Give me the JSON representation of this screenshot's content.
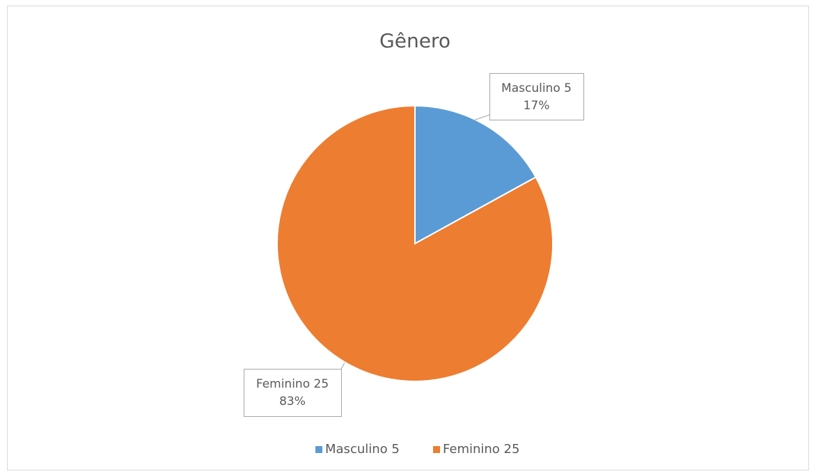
{
  "chart_data": {
    "type": "pie",
    "title": "Gênero",
    "categories": [
      "Masculino 5",
      "Feminino 25"
    ],
    "values": [
      17,
      83
    ],
    "value_labels": [
      "17%",
      "83%"
    ],
    "colors": [
      "#5b9bd5",
      "#ed7d31"
    ],
    "legend": "bottom"
  }
}
